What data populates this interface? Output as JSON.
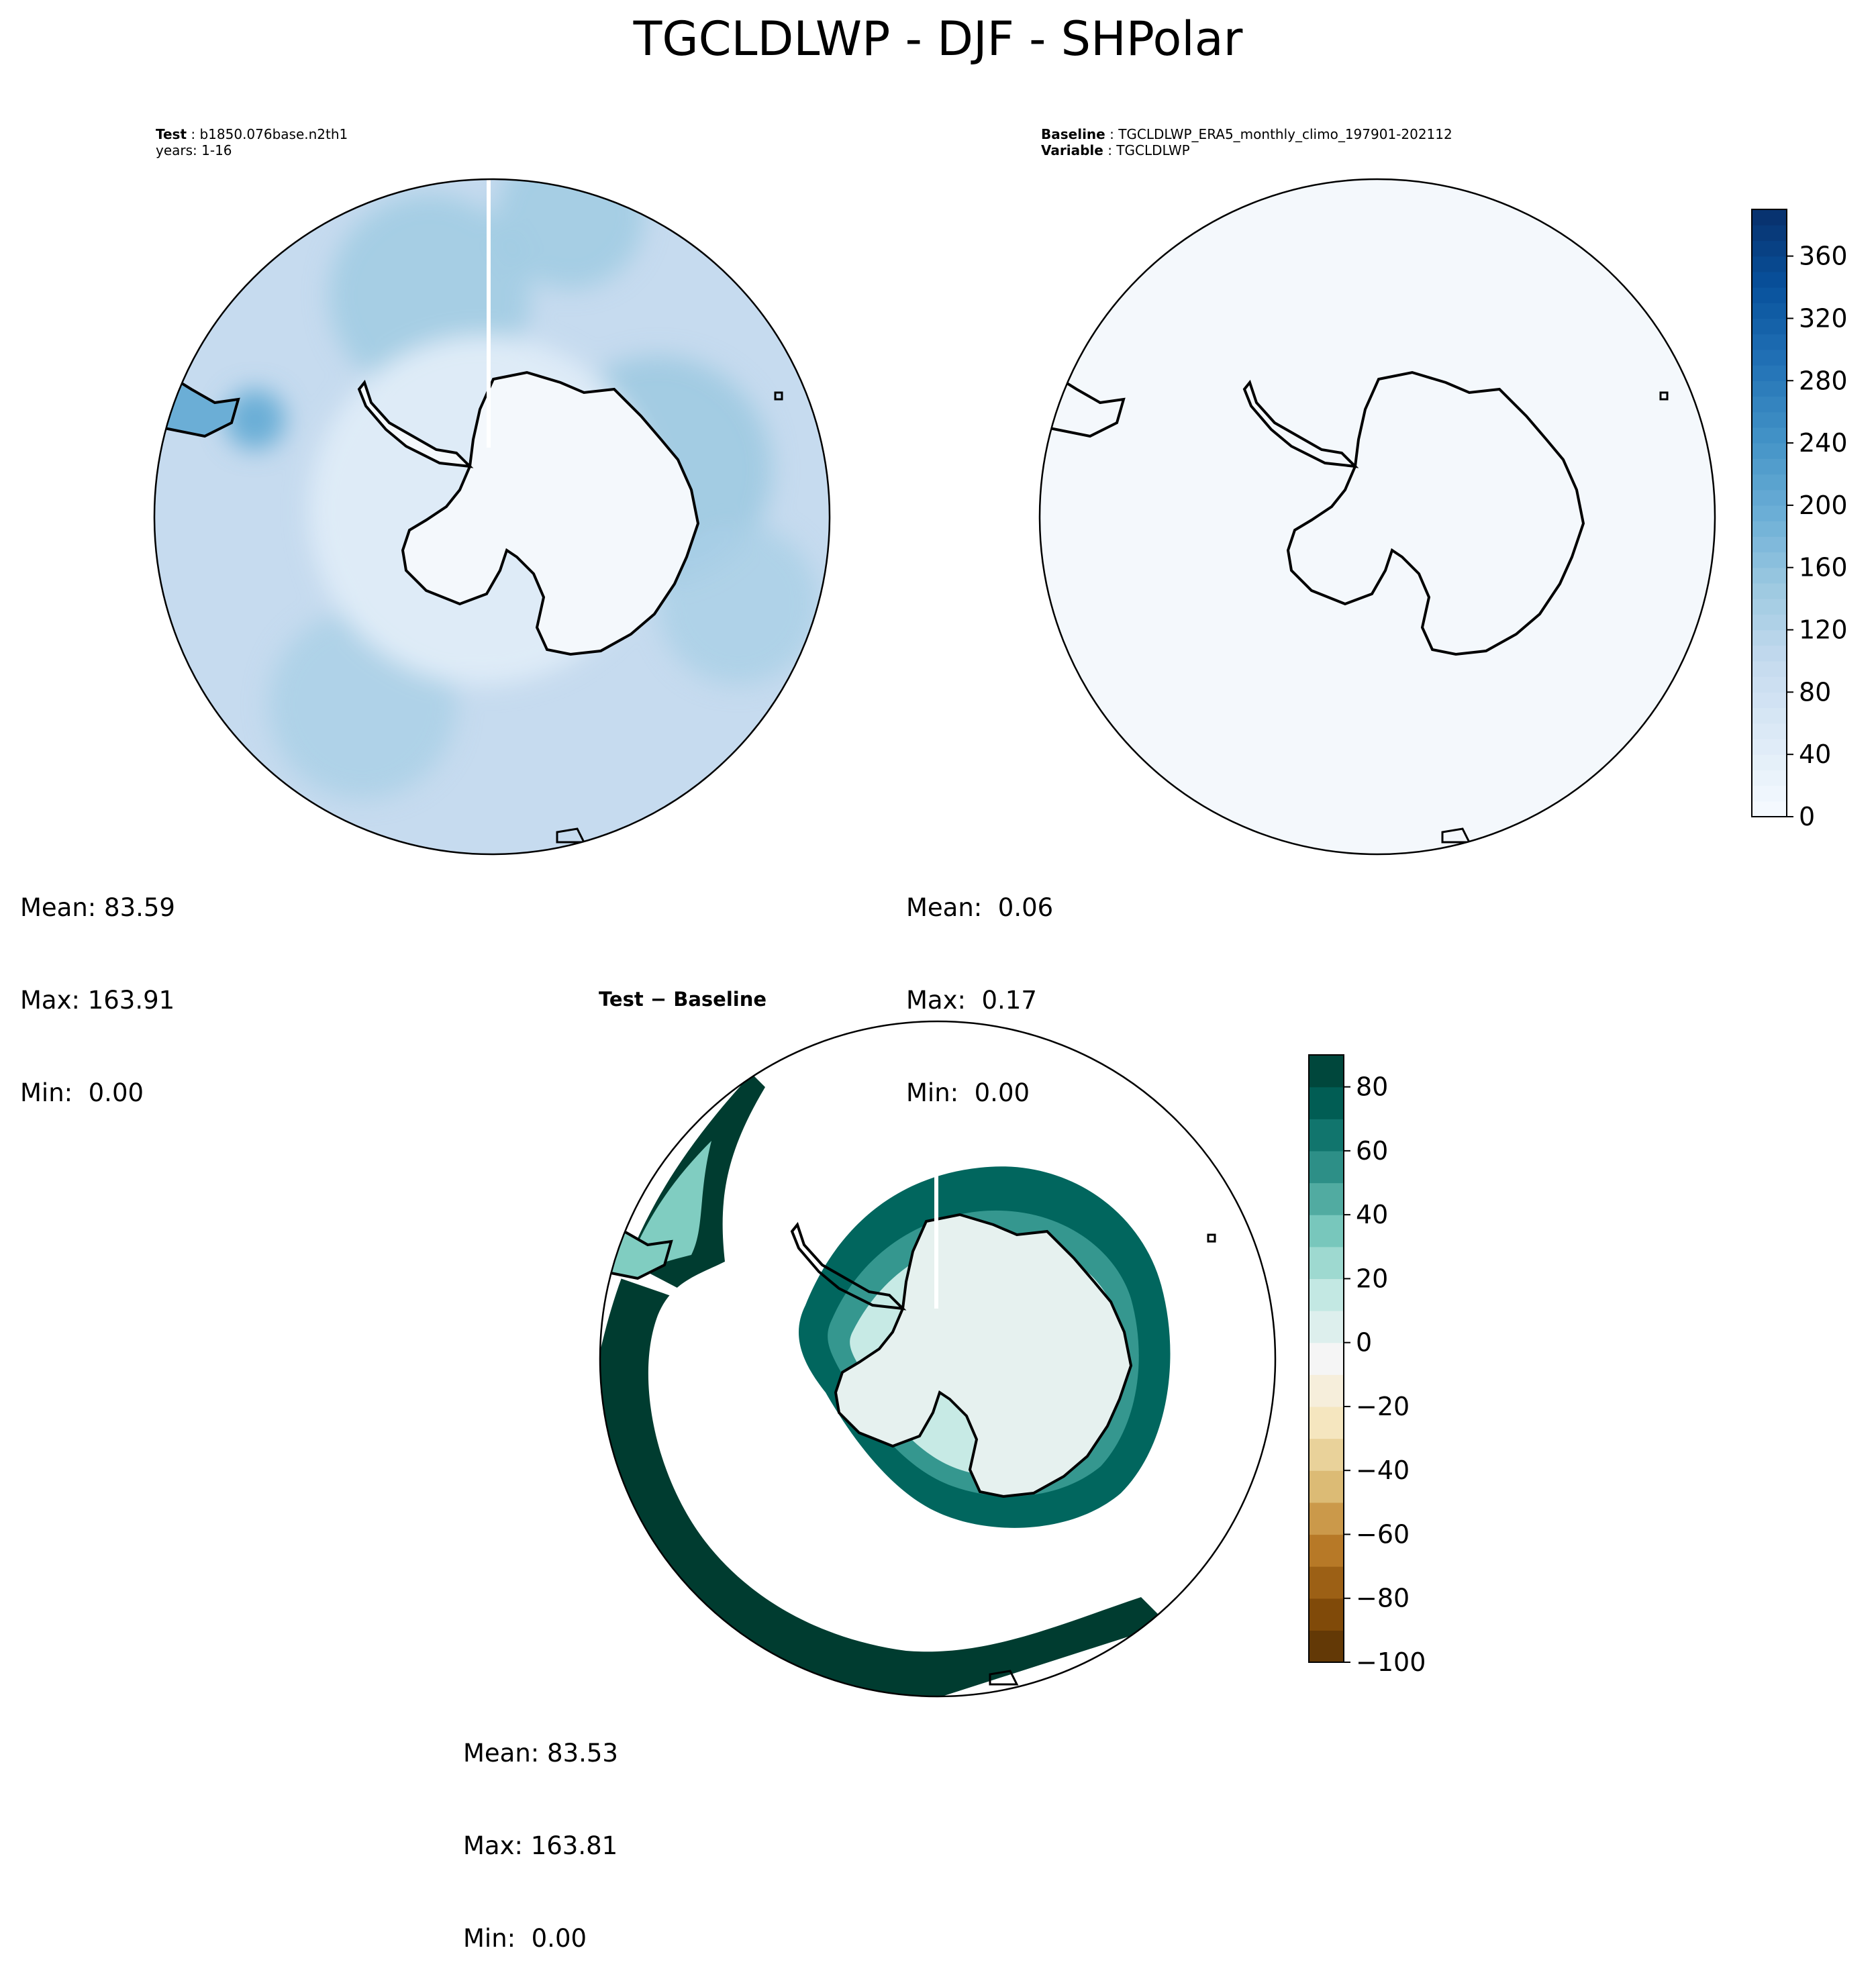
{
  "figure": {
    "title": "TGCLDLWP - DJF - SHPolar"
  },
  "panels": [
    {
      "id": "test",
      "header_key": "Test",
      "header_value": "b1850.076base.n2th1",
      "header_line2": "years: 1-16",
      "stats": {
        "mean": "Mean: 83.59",
        "max": "Max: 163.91",
        "min": "Min:  0.00"
      }
    },
    {
      "id": "baseline",
      "header_key": "Baseline",
      "header_value": "TGCLDLWP_ERA5_monthly_climo_197901-202112",
      "header_key2": "Variable",
      "header_value2": "TGCLDLWP",
      "stats": {
        "mean": "Mean:  0.06",
        "max": "Max:  0.17",
        "min": "Min:  0.00"
      }
    },
    {
      "id": "difference",
      "header_key": "Test",
      "header_sep": " − ",
      "header_key2": "Baseline",
      "stats": {
        "mean": "Mean: 83.53",
        "max": "Max: 163.81",
        "min": "Min:  0.00"
      }
    }
  ],
  "colorbars": {
    "blues": {
      "ticks": [
        "0",
        "40",
        "80",
        "120",
        "160",
        "200",
        "240",
        "280",
        "320",
        "360"
      ],
      "range": [
        0,
        390
      ],
      "colors": [
        "#f7fbff",
        "#deebf7",
        "#c6dbef",
        "#9ecae1",
        "#6baed6",
        "#4292c6",
        "#2171b5",
        "#08519c",
        "#08306b"
      ]
    },
    "brbg": {
      "ticks": [
        "−100",
        "−80",
        "−60",
        "−40",
        "−20",
        "0",
        "20",
        "40",
        "60",
        "80"
      ],
      "range": [
        -100,
        90
      ],
      "colors": [
        "#543005",
        "#8c510a",
        "#bf812d",
        "#dfc27d",
        "#f6e8c3",
        "#f5f5f5",
        "#c7eae5",
        "#80cdc1",
        "#35978f",
        "#01665e",
        "#003c30"
      ]
    }
  },
  "chart_data": [
    {
      "type": "heatmap",
      "title": "Test : b1850.076base.n2th1",
      "projection": "south polar stereographic",
      "colormap": "Blues",
      "range": [
        0,
        390
      ],
      "mean": 83.59,
      "max": 163.91,
      "min": 0.0
    },
    {
      "type": "heatmap",
      "title": "Baseline : TGCLDLWP_ERA5_monthly_climo_197901-202112",
      "projection": "south polar stereographic",
      "colormap": "Blues",
      "range": [
        0,
        390
      ],
      "mean": 0.06,
      "max": 0.17,
      "min": 0.0
    },
    {
      "type": "heatmap",
      "title": "Test − Baseline",
      "projection": "south polar stereographic",
      "colormap": "BrBG",
      "range": [
        -100,
        90
      ],
      "mean": 83.53,
      "max": 163.81,
      "min": 0.0
    }
  ]
}
